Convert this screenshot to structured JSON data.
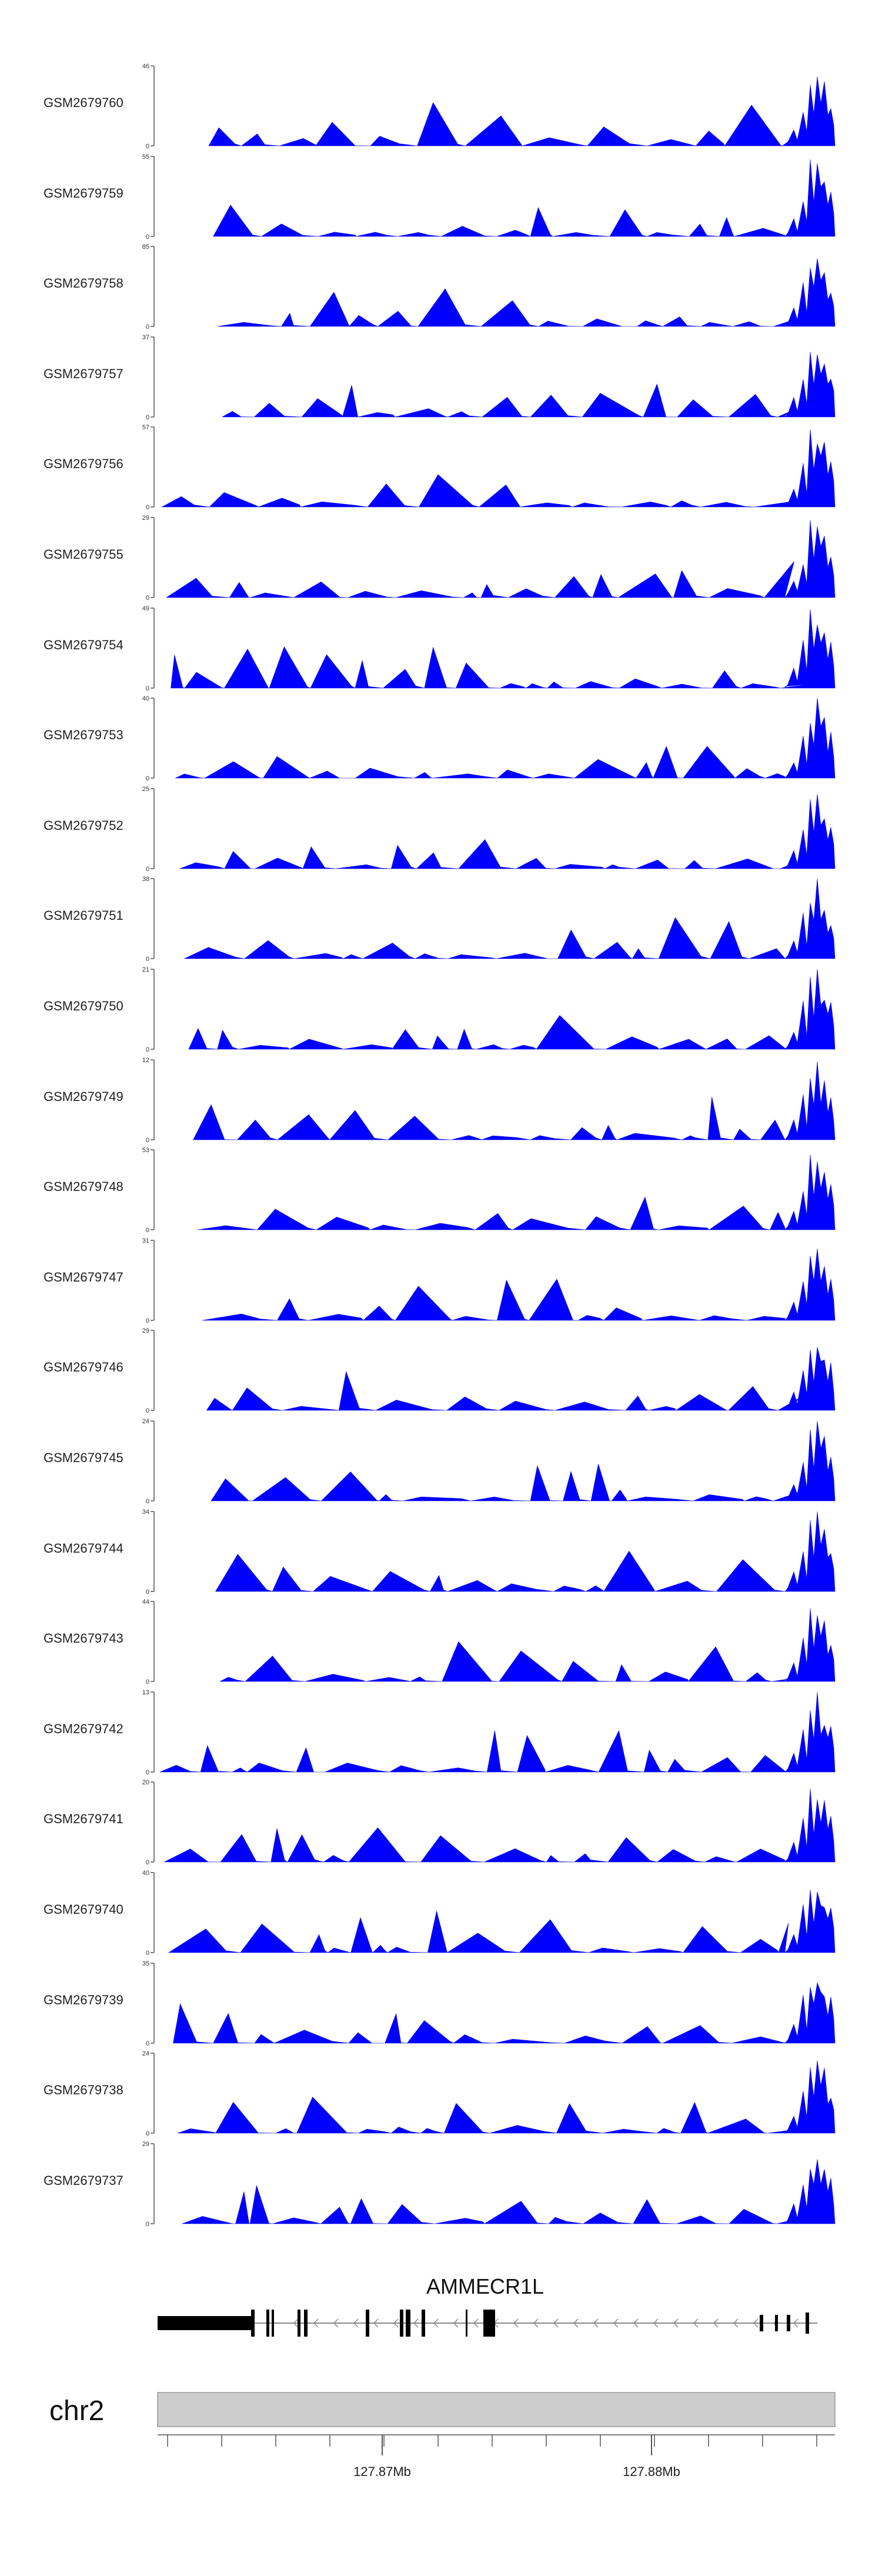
{
  "chart_data": {
    "type": "area",
    "chromosome": "chr2",
    "gene": {
      "name": "AMMECR1L",
      "strand": "-"
    },
    "genome_axis": {
      "ticks": [
        {
          "value": 127.87,
          "label": "127.87Mb"
        },
        {
          "value": 127.88,
          "label": "127.88Mb"
        }
      ]
    },
    "tracks": [
      {
        "sample": "GSM2679760",
        "ymax": "46",
        "ymin": "0"
      },
      {
        "sample": "GSM2679759",
        "ymax": "55",
        "ymin": "0"
      },
      {
        "sample": "GSM2679758",
        "ymax": "85",
        "ymin": "0"
      },
      {
        "sample": "GSM2679757",
        "ymax": "37",
        "ymin": "0"
      },
      {
        "sample": "GSM2679756",
        "ymax": "57",
        "ymin": "0"
      },
      {
        "sample": "GSM2679755",
        "ymax": "29",
        "ymin": "0"
      },
      {
        "sample": "GSM2679754",
        "ymax": "49",
        "ymin": "0"
      },
      {
        "sample": "GSM2679753",
        "ymax": "40",
        "ymin": "0"
      },
      {
        "sample": "GSM2679752",
        "ymax": "25",
        "ymin": "0"
      },
      {
        "sample": "GSM2679751",
        "ymax": "38",
        "ymin": "0"
      },
      {
        "sample": "GSM2679750",
        "ymax": "21",
        "ymin": "0"
      },
      {
        "sample": "GSM2679749",
        "ymax": "12",
        "ymin": "0"
      },
      {
        "sample": "GSM2679748",
        "ymax": "53",
        "ymin": "0"
      },
      {
        "sample": "GSM2679747",
        "ymax": "31",
        "ymin": "0"
      },
      {
        "sample": "GSM2679746",
        "ymax": "29",
        "ymin": "0"
      },
      {
        "sample": "GSM2679745",
        "ymax": "24",
        "ymin": "0"
      },
      {
        "sample": "GSM2679744",
        "ymax": "34",
        "ymin": "0"
      },
      {
        "sample": "GSM2679743",
        "ymax": "44",
        "ymin": "0"
      },
      {
        "sample": "GSM2679742",
        "ymax": "13",
        "ymin": "0"
      },
      {
        "sample": "GSM2679741",
        "ymax": "20",
        "ymin": "0"
      },
      {
        "sample": "GSM2679740",
        "ymax": "40",
        "ymin": "0"
      },
      {
        "sample": "GSM2679739",
        "ymax": "35",
        "ymin": "0"
      },
      {
        "sample": "GSM2679738",
        "ymax": "24",
        "ymin": "0"
      },
      {
        "sample": "GSM2679737",
        "ymax": "29",
        "ymin": "0"
      }
    ],
    "colors": {
      "coverage_fill": "#0000ff",
      "axis": "#555555",
      "exon": "#000000",
      "intron": "#888888",
      "ideogram_fill": "#cccccc",
      "ideogram_border": "#999999"
    }
  }
}
